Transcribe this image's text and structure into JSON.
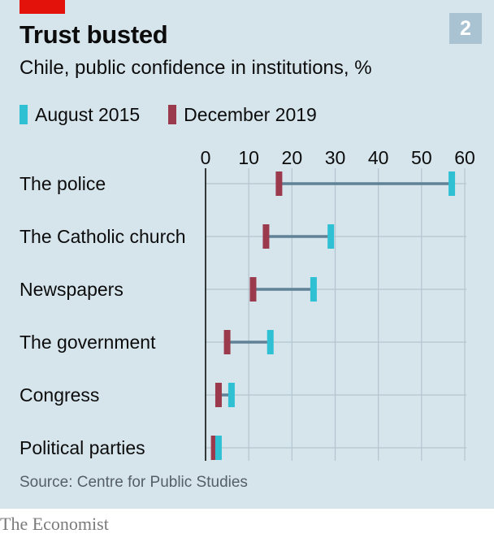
{
  "header": {
    "title": "Trust busted",
    "subtitle": "Chile, public confidence in institutions, %",
    "badge": "2"
  },
  "legend": [
    {
      "label": "August 2015",
      "color": "#2fc1d3"
    },
    {
      "label": "December 2019",
      "color": "#9a3a4c"
    }
  ],
  "source": "Source: Centre for Public Studies",
  "brand": "The Economist",
  "chart_data": {
    "type": "dumbbell",
    "title": "Trust busted",
    "subtitle": "Chile, public confidence in institutions, %",
    "xlim": [
      0,
      60
    ],
    "ticks": [
      0,
      10,
      20,
      30,
      40,
      50,
      60
    ],
    "grid": true,
    "legend_placement": "top",
    "categories": [
      "The police",
      "The Catholic church",
      "Newspapers",
      "The government",
      "Congress",
      "Political parties"
    ],
    "series": [
      {
        "name": "August 2015",
        "color": "#2fc1d3",
        "values": [
          57,
          29,
          25,
          15,
          6,
          3
        ]
      },
      {
        "name": "December 2019",
        "color": "#9a3a4c",
        "values": [
          17,
          14,
          11,
          5,
          3,
          2
        ]
      }
    ]
  }
}
